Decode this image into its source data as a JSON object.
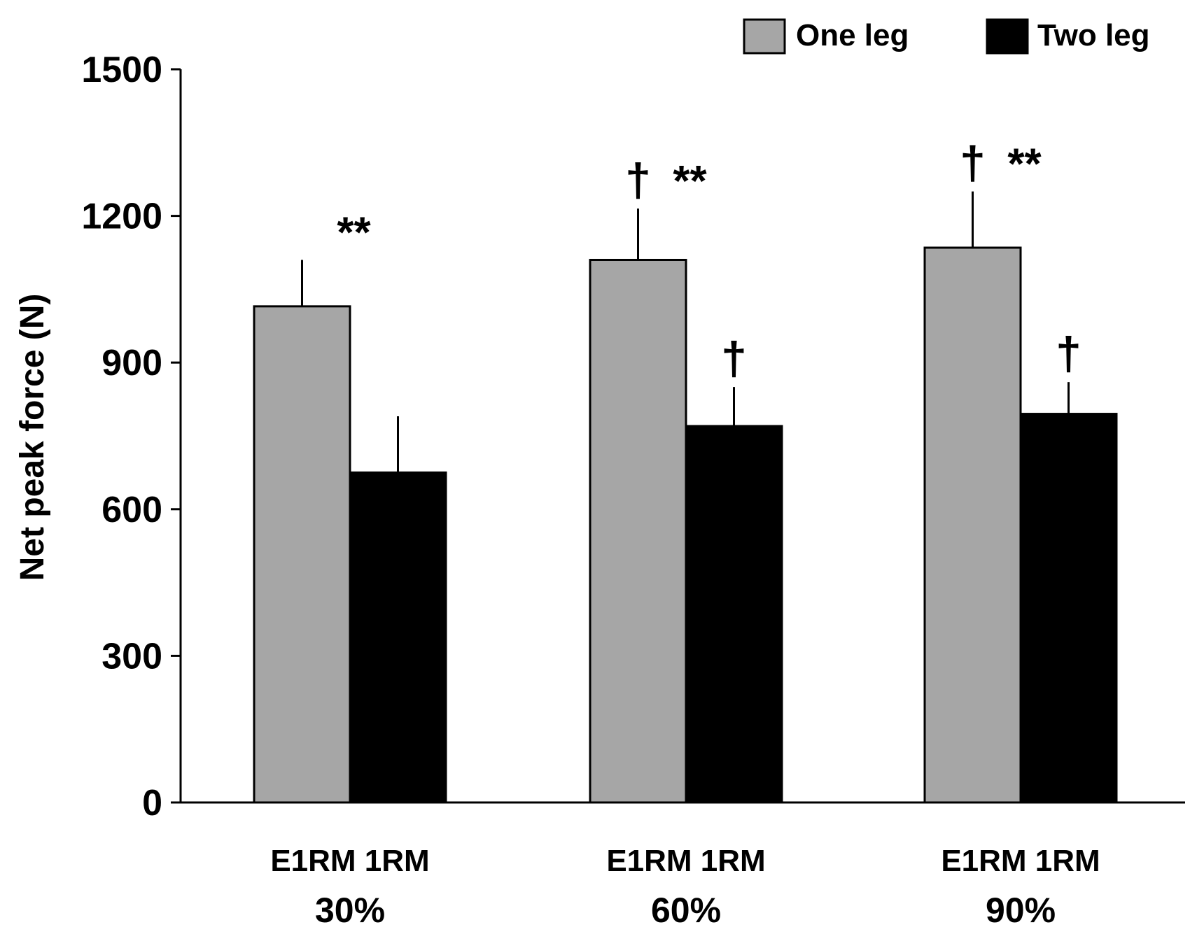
{
  "chart_data": {
    "type": "bar",
    "title": "",
    "xlabel": "",
    "ylabel": "Net peak force (N)",
    "ylim": [
      0,
      1500
    ],
    "yticks": [
      0,
      300,
      600,
      900,
      1200,
      1500
    ],
    "groups": [
      {
        "bars_label": "E1RM 1RM",
        "group_label": "30%"
      },
      {
        "bars_label": "E1RM 1RM",
        "group_label": "60%"
      },
      {
        "bars_label": "E1RM 1RM",
        "group_label": "90%"
      }
    ],
    "series": [
      {
        "name": "One leg",
        "color": "#a6a6a6",
        "values": [
          1015,
          1110,
          1135
        ],
        "errors": [
          95,
          105,
          115
        ]
      },
      {
        "name": "Two leg",
        "color": "#000000",
        "values": [
          675,
          770,
          795
        ],
        "errors": [
          115,
          80,
          65
        ]
      }
    ],
    "annotations": [
      {
        "group": 0,
        "text": "**"
      },
      {
        "group": 1,
        "text": "**"
      },
      {
        "group": 2,
        "text": "**"
      },
      {
        "group": 1,
        "series": 0,
        "text": "†"
      },
      {
        "group": 2,
        "series": 0,
        "text": "†"
      },
      {
        "group": 1,
        "series": 1,
        "text": "†"
      },
      {
        "group": 2,
        "series": 1,
        "text": "†"
      }
    ],
    "legend": "top-right"
  }
}
